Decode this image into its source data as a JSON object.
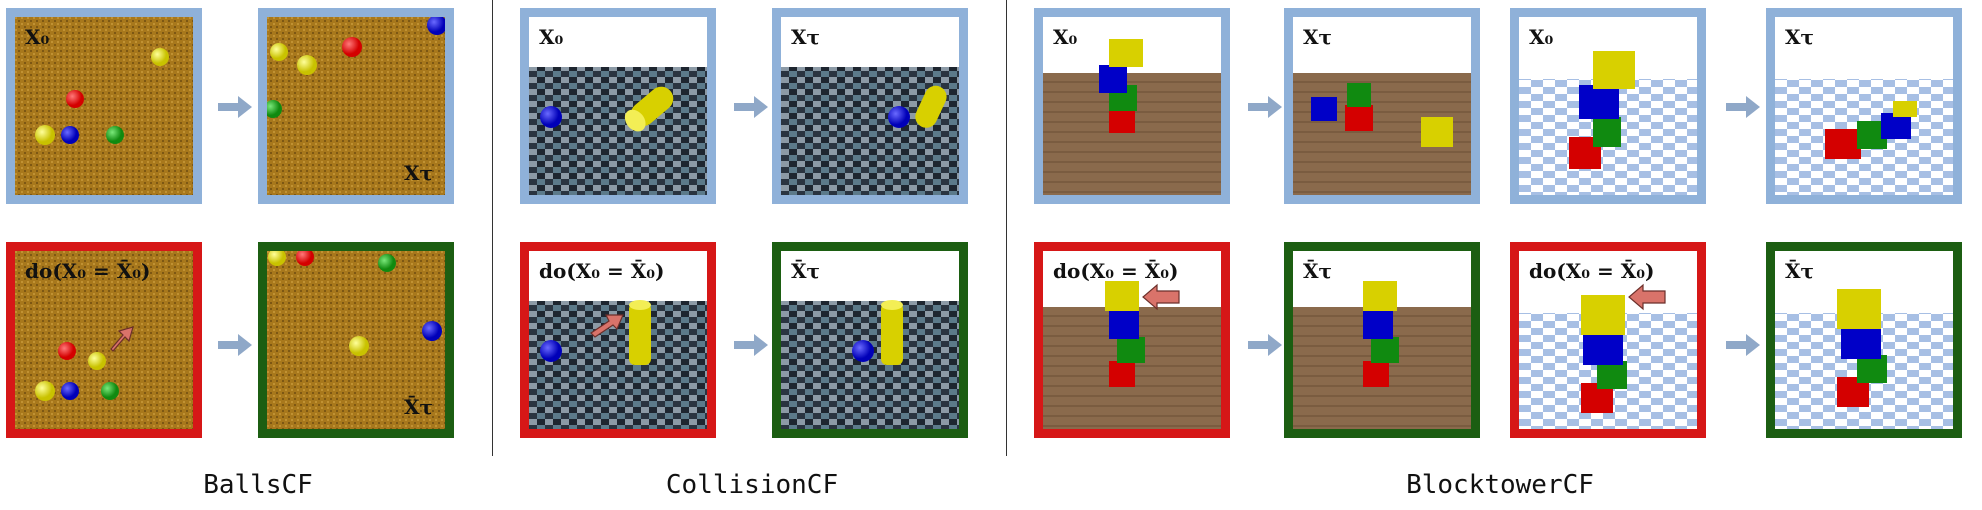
{
  "sections": [
    {
      "title": "BallsCF"
    },
    {
      "title": "CollisionCF"
    },
    {
      "title": "BlocktowerCF"
    }
  ],
  "panel_labels": {
    "x0": "X₀",
    "xtau": "Xτ",
    "do_x0": "do(X₀ = X̄₀)",
    "xbar_tau": "X̄τ"
  },
  "colors": {
    "factual_border": "#8fb1d9",
    "intervention_border": "#d61717",
    "counterfactual_border": "#1c5e12",
    "intervention_arrow": "#d9736a",
    "flow_arrow": "#8fa8c8"
  }
}
